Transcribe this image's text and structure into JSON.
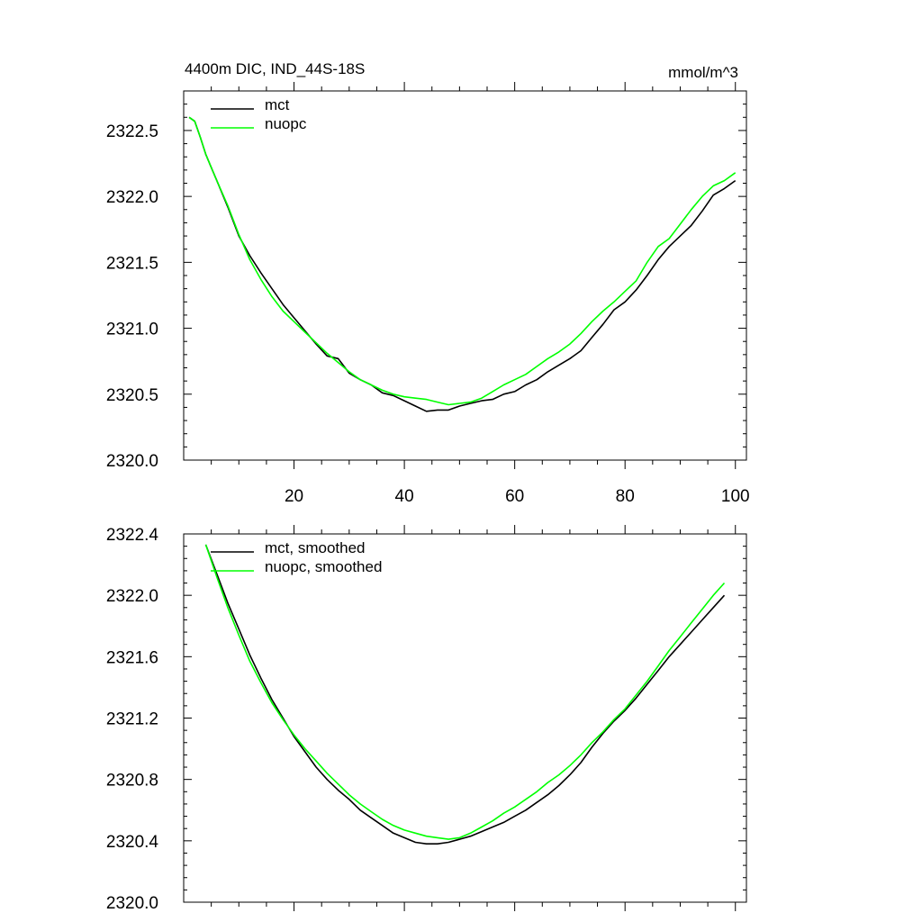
{
  "chart_data": [
    {
      "type": "line",
      "title": "4400m DIC, IND_44S-18S",
      "units": "mmol/m^3",
      "xlabel": "",
      "ylabel": "",
      "xlim": [
        0,
        102
      ],
      "ylim": [
        2320.0,
        2322.8
      ],
      "xticks": [
        20,
        40,
        60,
        80,
        100
      ],
      "xtick_labels": [
        "20",
        "40",
        "60",
        "80",
        "100"
      ],
      "yticks": [
        2320.0,
        2320.5,
        2321.0,
        2321.5,
        2322.0,
        2322.5
      ],
      "ytick_labels": [
        "2320.0",
        "2320.5",
        "2321.0",
        "2321.5",
        "2322.0",
        "2322.5"
      ],
      "legend_position": "top-left",
      "series": [
        {
          "name": "mct",
          "color": "#000000",
          "x": [
            1,
            2,
            3,
            4,
            5,
            6,
            8,
            10,
            12,
            14,
            16,
            18,
            20,
            22,
            24,
            26,
            28,
            30,
            32,
            34,
            36,
            38,
            40,
            42,
            44,
            46,
            48,
            50,
            52,
            54,
            56,
            58,
            60,
            62,
            64,
            66,
            68,
            70,
            72,
            74,
            76,
            78,
            80,
            82,
            84,
            86,
            88,
            90,
            92,
            94,
            96,
            98,
            100
          ],
          "values": [
            2322.6,
            2322.57,
            2322.45,
            2322.32,
            2322.22,
            2322.12,
            2321.92,
            2321.7,
            2321.55,
            2321.42,
            2321.3,
            2321.18,
            2321.08,
            2320.98,
            2320.88,
            2320.79,
            2320.77,
            2320.66,
            2320.61,
            2320.57,
            2320.51,
            2320.49,
            2320.45,
            2320.41,
            2320.37,
            2320.38,
            2320.38,
            2320.41,
            2320.43,
            2320.45,
            2320.46,
            2320.5,
            2320.52,
            2320.57,
            2320.61,
            2320.67,
            2320.72,
            2320.77,
            2320.83,
            2320.93,
            2321.03,
            2321.14,
            2321.2,
            2321.29,
            2321.4,
            2321.52,
            2321.62,
            2321.7,
            2321.78,
            2321.89,
            2322.01,
            2322.06,
            2322.12
          ]
        },
        {
          "name": "nuopc",
          "color": "#00ff00",
          "x": [
            1,
            2,
            3,
            4,
            5,
            6,
            8,
            10,
            12,
            14,
            16,
            18,
            20,
            22,
            24,
            26,
            28,
            30,
            32,
            34,
            36,
            38,
            40,
            42,
            44,
            46,
            48,
            50,
            52,
            54,
            56,
            58,
            60,
            62,
            64,
            66,
            68,
            70,
            72,
            74,
            76,
            78,
            80,
            82,
            84,
            86,
            88,
            90,
            92,
            94,
            96,
            98,
            100
          ],
          "values": [
            2322.6,
            2322.57,
            2322.45,
            2322.32,
            2322.22,
            2322.12,
            2321.93,
            2321.71,
            2321.52,
            2321.37,
            2321.24,
            2321.13,
            2321.05,
            2320.97,
            2320.89,
            2320.81,
            2320.74,
            2320.67,
            2320.61,
            2320.57,
            2320.53,
            2320.5,
            2320.48,
            2320.47,
            2320.46,
            2320.44,
            2320.42,
            2320.43,
            2320.44,
            2320.47,
            2320.52,
            2320.57,
            2320.61,
            2320.65,
            2320.71,
            2320.77,
            2320.82,
            2320.88,
            2320.96,
            2321.05,
            2321.13,
            2321.2,
            2321.28,
            2321.36,
            2321.5,
            2321.62,
            2321.68,
            2321.79,
            2321.9,
            2322.0,
            2322.08,
            2322.12,
            2322.18
          ]
        }
      ]
    },
    {
      "type": "line",
      "title": "",
      "xlabel": "",
      "ylabel": "",
      "xlim": [
        0,
        102
      ],
      "ylim": [
        2320.0,
        2322.4
      ],
      "xticks": [
        20,
        40,
        60,
        80,
        100
      ],
      "xtick_labels": [],
      "yticks": [
        2320.0,
        2320.4,
        2320.8,
        2321.2,
        2321.6,
        2322.0,
        2322.4
      ],
      "ytick_labels": [
        "2320.0",
        "2320.4",
        "2320.8",
        "2321.2",
        "2321.6",
        "2322.0",
        "2322.4"
      ],
      "legend_position": "top-left",
      "series": [
        {
          "name": "mct, smoothed",
          "color": "#000000",
          "x": [
            4,
            6,
            8,
            10,
            12,
            14,
            16,
            18,
            20,
            22,
            24,
            26,
            28,
            30,
            32,
            34,
            36,
            38,
            40,
            42,
            44,
            46,
            48,
            50,
            52,
            54,
            56,
            58,
            60,
            62,
            64,
            66,
            68,
            70,
            72,
            74,
            76,
            78,
            80,
            82,
            84,
            86,
            88,
            90,
            92,
            94,
            96,
            98
          ],
          "values": [
            2322.33,
            2322.14,
            2321.95,
            2321.78,
            2321.61,
            2321.46,
            2321.32,
            2321.2,
            2321.08,
            2320.98,
            2320.88,
            2320.8,
            2320.73,
            2320.67,
            2320.6,
            2320.55,
            2320.5,
            2320.45,
            2320.42,
            2320.39,
            2320.38,
            2320.38,
            2320.39,
            2320.41,
            2320.43,
            2320.46,
            2320.49,
            2320.52,
            2320.56,
            2320.6,
            2320.65,
            2320.7,
            2320.76,
            2320.83,
            2320.91,
            2321.01,
            2321.1,
            2321.18,
            2321.25,
            2321.33,
            2321.42,
            2321.51,
            2321.6,
            2321.68,
            2321.76,
            2321.84,
            2321.92,
            2322.0
          ]
        },
        {
          "name": "nuopc, smoothed",
          "color": "#00ff00",
          "x": [
            4,
            6,
            8,
            10,
            12,
            14,
            16,
            18,
            20,
            22,
            24,
            26,
            28,
            30,
            32,
            34,
            36,
            38,
            40,
            42,
            44,
            46,
            48,
            50,
            52,
            54,
            56,
            58,
            60,
            62,
            64,
            66,
            68,
            70,
            72,
            74,
            76,
            78,
            80,
            82,
            84,
            86,
            88,
            90,
            92,
            94,
            96,
            98
          ],
          "values": [
            2322.33,
            2322.12,
            2321.92,
            2321.74,
            2321.57,
            2321.43,
            2321.3,
            2321.19,
            2321.09,
            2321.0,
            2320.92,
            2320.84,
            2320.77,
            2320.7,
            2320.64,
            2320.59,
            2320.54,
            2320.5,
            2320.47,
            2320.45,
            2320.43,
            2320.42,
            2320.41,
            2320.42,
            2320.45,
            2320.49,
            2320.53,
            2320.58,
            2320.62,
            2320.67,
            2320.72,
            2320.78,
            2320.83,
            2320.89,
            2320.96,
            2321.04,
            2321.11,
            2321.19,
            2321.26,
            2321.35,
            2321.44,
            2321.54,
            2321.64,
            2321.73,
            2321.82,
            2321.91,
            2322.0,
            2322.08
          ]
        }
      ]
    }
  ]
}
